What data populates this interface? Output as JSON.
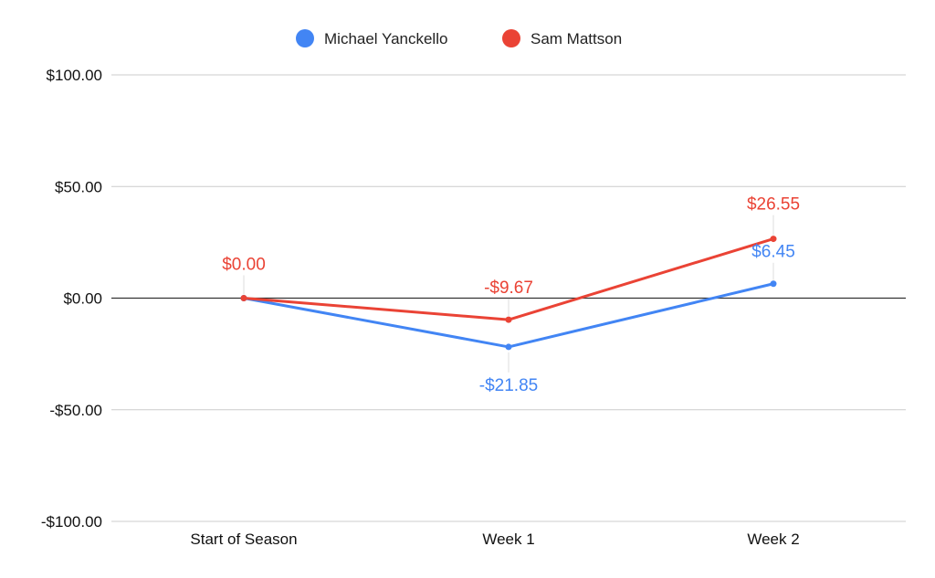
{
  "chart_data": {
    "type": "line",
    "categories": [
      "Start of Season",
      "Week 1",
      "Week 2"
    ],
    "ylim": [
      -100,
      100
    ],
    "yticks": [
      {
        "value": 100,
        "label": "$100.00"
      },
      {
        "value": 50,
        "label": "$50.00"
      },
      {
        "value": 0,
        "label": "$0.00"
      },
      {
        "value": -50,
        "label": "-$50.00"
      },
      {
        "value": -100,
        "label": "-$100.00"
      }
    ],
    "grid": true,
    "legend_position": "top",
    "series": [
      {
        "name": "Michael Yanckello",
        "color": "#4285f4",
        "values": [
          0,
          -21.85,
          6.45
        ],
        "labels": [
          "",
          "-$21.85",
          "$6.45"
        ]
      },
      {
        "name": "Sam Mattson",
        "color": "#ea4335",
        "values": [
          0,
          -9.67,
          26.55
        ],
        "labels": [
          "$0.00",
          "-$9.67",
          "$26.55"
        ]
      }
    ]
  }
}
